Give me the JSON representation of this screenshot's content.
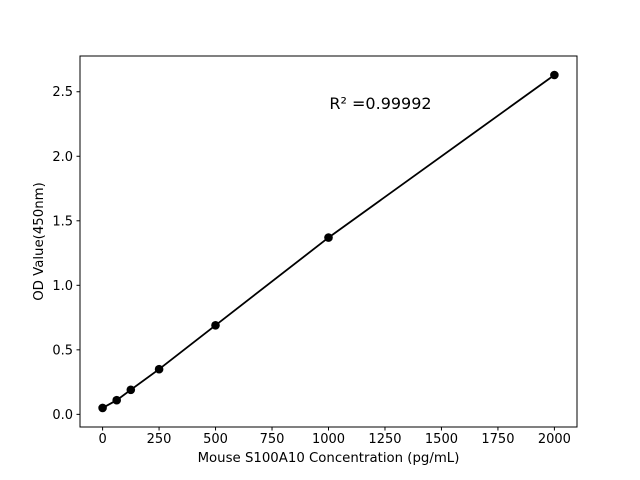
{
  "figure": {
    "background": "#ffffff",
    "axes_color": "#000000"
  },
  "chart_data": {
    "type": "scatter",
    "title": "",
    "xlabel": "Mouse S100A10 Concentration (pg/mL)",
    "ylabel": "OD Value(450nm)",
    "x": [
      0,
      62.5,
      125,
      250,
      500,
      1000,
      2000
    ],
    "y": [
      0.05,
      0.11,
      0.19,
      0.35,
      0.69,
      1.37,
      2.63
    ],
    "line_through_points": true,
    "line_color": "#000000",
    "marker": "circle",
    "marker_color": "#000000",
    "xlim": [
      -100,
      2100
    ],
    "ylim": [
      -0.098,
      2.777
    ],
    "x_ticks": [
      0,
      250,
      500,
      750,
      1000,
      1250,
      1500,
      1750,
      2000
    ],
    "x_tick_labels": [
      "0",
      "250",
      "500",
      "750",
      "1000",
      "1250",
      "1500",
      "1750",
      "2000"
    ],
    "y_ticks": [
      0,
      0.5,
      1,
      1.5,
      2,
      2.5
    ],
    "y_tick_labels": [
      "0.0",
      "0.5",
      "1.0",
      "1.5",
      "2.0",
      "2.5"
    ],
    "grid": false,
    "legend": "none",
    "annotation": {
      "text": "R² =0.99992",
      "x": 1230,
      "y": 2.41
    }
  }
}
